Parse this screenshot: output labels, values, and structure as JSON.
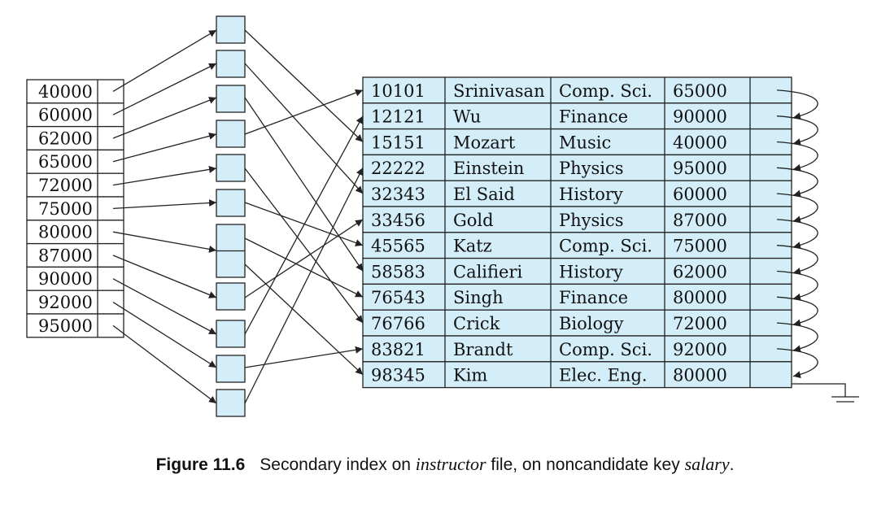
{
  "index_keys": [
    "40000",
    "60000",
    "62000",
    "65000",
    "72000",
    "75000",
    "80000",
    "87000",
    "90000",
    "92000",
    "95000"
  ],
  "records": [
    [
      "10101",
      "Srinivasan",
      "Comp. Sci.",
      "65000"
    ],
    [
      "12121",
      "Wu",
      "Finance",
      "90000"
    ],
    [
      "15151",
      "Mozart",
      "Music",
      "40000"
    ],
    [
      "22222",
      "Einstein",
      "Physics",
      "95000"
    ],
    [
      "32343",
      "El Said",
      "History",
      "60000"
    ],
    [
      "33456",
      "Gold",
      "Physics",
      "87000"
    ],
    [
      "45565",
      "Katz",
      "Comp. Sci.",
      "75000"
    ],
    [
      "58583",
      "Califieri",
      "History",
      "62000"
    ],
    [
      "76543",
      "Singh",
      "Finance",
      "80000"
    ],
    [
      "76766",
      "Crick",
      "Biology",
      "72000"
    ],
    [
      "83821",
      "Brandt",
      "Comp. Sci.",
      "92000"
    ],
    [
      "98345",
      "Kim",
      "Elec. Eng.",
      "80000"
    ]
  ],
  "colors": {
    "cell_fill": "#d3eef8",
    "stroke": "#222222"
  },
  "caption": {
    "number": "Figure 11.6",
    "part1": "Secondary index on ",
    "italic1": "instructor",
    "part2": " file, on noncandidate key ",
    "italic2": "salary",
    "part3": "."
  }
}
